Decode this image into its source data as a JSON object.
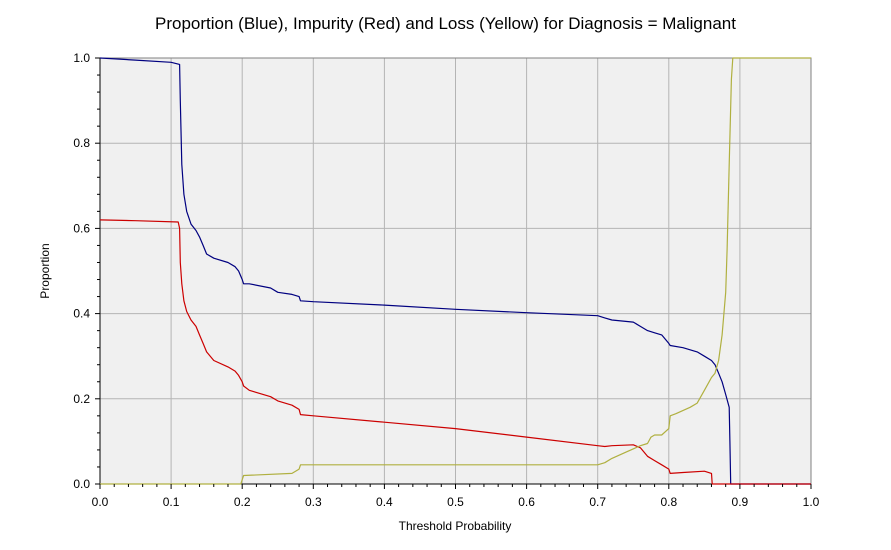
{
  "chart_data": {
    "type": "line",
    "title": "Proportion (Blue), Impurity (Red) and Loss (Yellow) for Diagnosis = Malignant",
    "xlabel": "Threshold Probability",
    "ylabel": "Proportion",
    "xlim": [
      0,
      1
    ],
    "ylim": [
      0,
      1
    ],
    "grid": true,
    "x_ticks": [
      "0.0",
      "0.1",
      "0.2",
      "0.3",
      "0.4",
      "0.5",
      "0.6",
      "0.7",
      "0.8",
      "0.9",
      "1.0"
    ],
    "y_ticks": [
      "0.0",
      "0.2",
      "0.4",
      "0.6",
      "0.8",
      "1.0"
    ],
    "background": "#f0f0f0",
    "series": [
      {
        "color": "#000080",
        "x": [
          0.0,
          0.05,
          0.1,
          0.112,
          0.113,
          0.115,
          0.118,
          0.122,
          0.128,
          0.135,
          0.14,
          0.145,
          0.15,
          0.16,
          0.18,
          0.19,
          0.195,
          0.2,
          0.202,
          0.21,
          0.24,
          0.25,
          0.27,
          0.28,
          0.282,
          0.3,
          0.4,
          0.5,
          0.6,
          0.7,
          0.71,
          0.72,
          0.75,
          0.76,
          0.77,
          0.78,
          0.79,
          0.8,
          0.802,
          0.82,
          0.83,
          0.84,
          0.85,
          0.86,
          0.865,
          0.87,
          0.875,
          0.88,
          0.885,
          0.886,
          0.887,
          1.0
        ],
        "y": [
          1.0,
          0.995,
          0.99,
          0.985,
          0.9,
          0.75,
          0.68,
          0.64,
          0.61,
          0.595,
          0.58,
          0.56,
          0.54,
          0.53,
          0.52,
          0.51,
          0.5,
          0.48,
          0.47,
          0.47,
          0.46,
          0.45,
          0.445,
          0.44,
          0.43,
          0.428,
          0.42,
          0.41,
          0.402,
          0.395,
          0.39,
          0.385,
          0.38,
          0.37,
          0.36,
          0.355,
          0.35,
          0.33,
          0.325,
          0.32,
          0.315,
          0.31,
          0.3,
          0.29,
          0.28,
          0.26,
          0.24,
          0.21,
          0.18,
          0.1,
          0.0,
          0.0
        ]
      },
      {
        "color": "#cc0000",
        "x": [
          0.0,
          0.05,
          0.11,
          0.112,
          0.113,
          0.115,
          0.118,
          0.122,
          0.128,
          0.135,
          0.14,
          0.145,
          0.15,
          0.16,
          0.18,
          0.19,
          0.195,
          0.2,
          0.202,
          0.21,
          0.24,
          0.25,
          0.27,
          0.28,
          0.282,
          0.3,
          0.4,
          0.5,
          0.6,
          0.7,
          0.71,
          0.72,
          0.75,
          0.76,
          0.77,
          0.78,
          0.79,
          0.8,
          0.802,
          0.82,
          0.85,
          0.86,
          0.861,
          1.0
        ],
        "y": [
          0.62,
          0.618,
          0.615,
          0.6,
          0.52,
          0.47,
          0.43,
          0.405,
          0.385,
          0.37,
          0.35,
          0.33,
          0.31,
          0.29,
          0.275,
          0.265,
          0.255,
          0.24,
          0.23,
          0.22,
          0.205,
          0.195,
          0.185,
          0.175,
          0.163,
          0.16,
          0.145,
          0.13,
          0.11,
          0.09,
          0.088,
          0.09,
          0.092,
          0.085,
          0.065,
          0.055,
          0.045,
          0.035,
          0.025,
          0.027,
          0.03,
          0.025,
          0.0,
          0.0
        ]
      },
      {
        "color": "#b0b040",
        "x": [
          0.0,
          0.198,
          0.2,
          0.202,
          0.27,
          0.28,
          0.282,
          0.3,
          0.5,
          0.7,
          0.71,
          0.72,
          0.74,
          0.76,
          0.77,
          0.775,
          0.78,
          0.79,
          0.8,
          0.802,
          0.81,
          0.83,
          0.84,
          0.85,
          0.86,
          0.865,
          0.87,
          0.875,
          0.88,
          0.882,
          0.885,
          0.888,
          0.89,
          1.0
        ],
        "y": [
          0.0,
          0.0,
          0.01,
          0.02,
          0.025,
          0.035,
          0.045,
          0.045,
          0.045,
          0.045,
          0.05,
          0.06,
          0.075,
          0.09,
          0.095,
          0.11,
          0.115,
          0.115,
          0.13,
          0.16,
          0.165,
          0.18,
          0.19,
          0.22,
          0.25,
          0.26,
          0.29,
          0.35,
          0.45,
          0.55,
          0.75,
          0.95,
          1.0,
          1.0
        ]
      }
    ]
  }
}
